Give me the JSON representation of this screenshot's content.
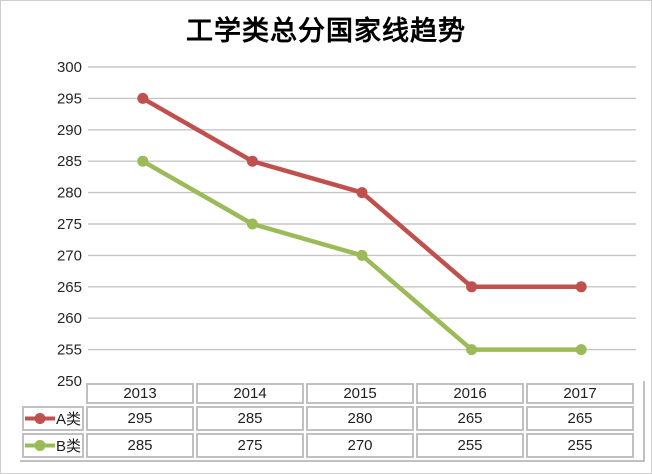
{
  "chart_data": {
    "type": "line",
    "title": "工学类总分国家线趋势",
    "categories": [
      "2013",
      "2014",
      "2015",
      "2016",
      "2017"
    ],
    "series": [
      {
        "name": "A类",
        "color": "#C0504D",
        "values": [
          295,
          285,
          280,
          265,
          265
        ]
      },
      {
        "name": "B类",
        "color": "#9BBB59",
        "values": [
          285,
          275,
          270,
          255,
          255
        ]
      }
    ],
    "xlabel": "",
    "ylabel": "",
    "ylim": [
      250,
      300
    ],
    "y_ticks": [
      300,
      295,
      290,
      285,
      280,
      275,
      270,
      265,
      260,
      255,
      250
    ],
    "grid": true,
    "legend_position": "data-table-left",
    "data_table_shown": true,
    "marker": "circle",
    "gridline_color": "#c6c6c6",
    "table_border_color": "#c0c0c0"
  }
}
